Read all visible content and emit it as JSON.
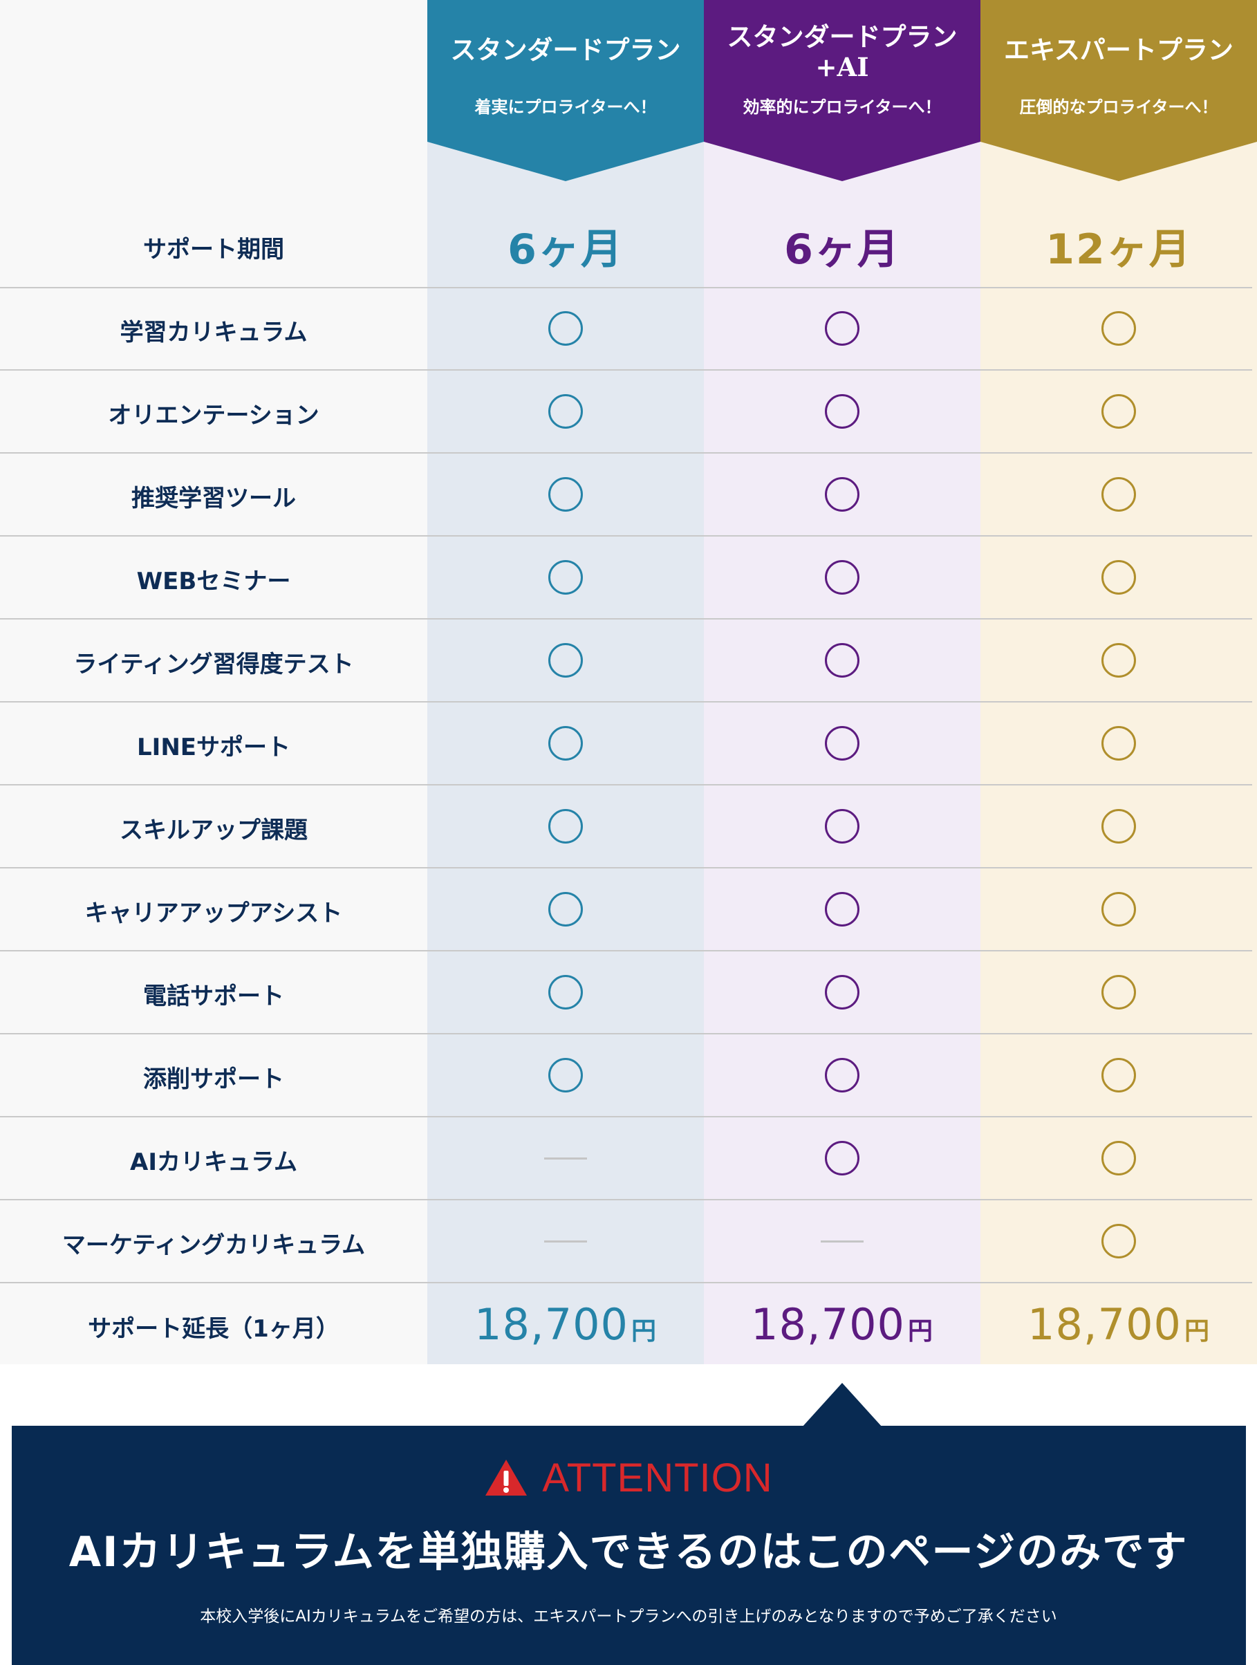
{
  "plans": {
    "standard": {
      "title": "スタンダードプラン",
      "subtitle": "着実にプロライターへ！",
      "color": "#2583a8"
    },
    "standard_ai": {
      "title": "スタンダードプラン\n+AI",
      "subtitle": "効率的にプロライターへ！",
      "color": "#5c1b80"
    },
    "expert": {
      "title": "エキスパートプラン",
      "subtitle": "圧倒的なプロライターへ！",
      "color": "#b08f2c"
    }
  },
  "period_row": {
    "label": "サポート期間",
    "standard": "6ヶ月",
    "standard_ai": "6ヶ月",
    "expert": "12ヶ月"
  },
  "features": [
    {
      "label": "学習カリキュラム",
      "standard": true,
      "standard_ai": true,
      "expert": true
    },
    {
      "label": "オリエンテーション",
      "standard": true,
      "standard_ai": true,
      "expert": true
    },
    {
      "label": "推奨学習ツール",
      "standard": true,
      "standard_ai": true,
      "expert": true
    },
    {
      "label": "WEBセミナー",
      "standard": true,
      "standard_ai": true,
      "expert": true
    },
    {
      "label": "ライティング習得度テスト",
      "standard": true,
      "standard_ai": true,
      "expert": true
    },
    {
      "label": "LINEサポート",
      "standard": true,
      "standard_ai": true,
      "expert": true
    },
    {
      "label": "スキルアップ課題",
      "standard": true,
      "standard_ai": true,
      "expert": true
    },
    {
      "label": "キャリアアップアシスト",
      "standard": true,
      "standard_ai": true,
      "expert": true
    },
    {
      "label": "電話サポート",
      "standard": true,
      "standard_ai": true,
      "expert": true
    },
    {
      "label": "添削サポート",
      "standard": true,
      "standard_ai": true,
      "expert": true
    },
    {
      "label": "AIカリキュラム",
      "standard": false,
      "standard_ai": true,
      "expert": true
    },
    {
      "label": "マーケティングカリキュラム",
      "standard": false,
      "standard_ai": false,
      "expert": true
    }
  ],
  "price_row": {
    "label": "サポート延長（1ヶ月）",
    "standard": "18,700",
    "standard_ai": "18,700",
    "expert": "18,700",
    "unit": "円"
  },
  "attention": {
    "icon": "warning-icon",
    "heading": "ATTENTION",
    "message": "AIカリキュラムを単独購入できるのはこのページのみです",
    "note": "本校入学後にAIカリキュラムをご希望の方は、エキスパートプランへの引き上げのみとなりますので予めご了承ください"
  }
}
